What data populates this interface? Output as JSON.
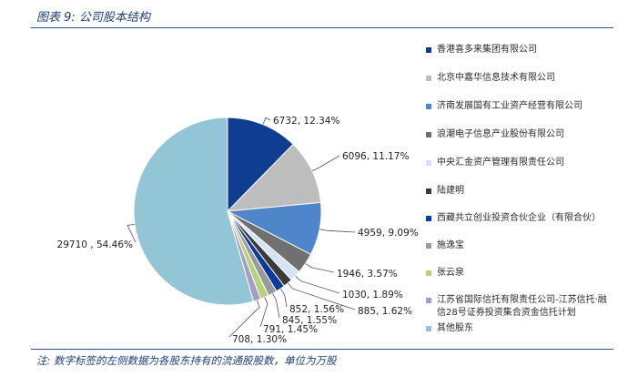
{
  "figure_title": "图表 9:  公司股本结构",
  "note": "注:  数字标签的左侧数据为各股东持有的流通股股数，单位为万股",
  "chart_data": {
    "type": "pie",
    "slices": [
      {
        "name": "香港喜多来集团有限公司",
        "value": 6732,
        "label": "6732, 12.34%",
        "color": "#0f3d8f"
      },
      {
        "name": "北京中嘉华信息技术有限公司",
        "value": 6096,
        "label": "6096, 11.17%",
        "color": "#bdbdbd"
      },
      {
        "name": "济南发展国有工业资产经营有限公司",
        "value": 4959,
        "label": "4959, 9.09%",
        "color": "#4f86c9"
      },
      {
        "name": "浪潮电子信息产业股份有限公司",
        "value": 1946,
        "label": "1946, 3.57%",
        "color": "#707070"
      },
      {
        "name": "中央汇金资产管理有限责任公司",
        "value": 1030,
        "label": "1030, 1.89%",
        "color": "#d4e4f5"
      },
      {
        "name": "陆建明",
        "value": 885,
        "label": "885, 1.62%",
        "color": "#3a3a3a"
      },
      {
        "name": "西藏共立创业投资合伙企业（有限合伙）",
        "value": 852,
        "label": "852, 1.56%",
        "color": "#0b3a9c"
      },
      {
        "name": "施逸宝",
        "value": 845,
        "label": "845, 1.55%",
        "color": "#9a9a9a"
      },
      {
        "name": "张云泉",
        "value": 791,
        "label": "791, 1.45%",
        "color": "#b7d27f"
      },
      {
        "name": "江苏省国际信托有限责任公司-江苏信托·融信28号证券投资集合资金信托计划",
        "value": 708,
        "label": "708, 1.30%",
        "color": "#a79bc8"
      },
      {
        "name": "其他股东",
        "value": 29710,
        "label": "29710 , 54.46%",
        "color": "#92c5d6"
      }
    ],
    "legend_position": "right"
  }
}
